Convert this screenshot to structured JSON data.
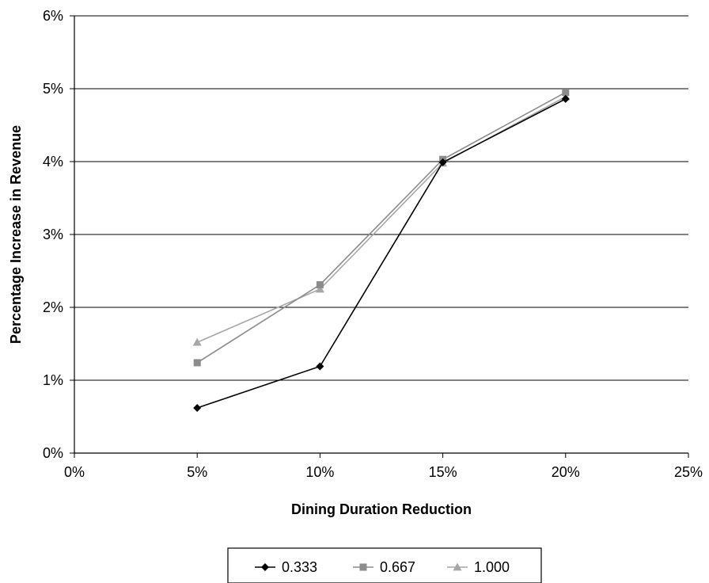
{
  "chart_data": {
    "type": "line",
    "title": "",
    "xlabel": "Dining Duration Reduction",
    "ylabel": "Percentage Increase in Revenue",
    "xlim": [
      0,
      25
    ],
    "ylim": [
      0,
      6
    ],
    "x_ticks": [
      {
        "value": 0,
        "label": "0%"
      },
      {
        "value": 5,
        "label": "5%"
      },
      {
        "value": 10,
        "label": "10%"
      },
      {
        "value": 15,
        "label": "15%"
      },
      {
        "value": 20,
        "label": "20%"
      },
      {
        "value": 25,
        "label": "25%"
      }
    ],
    "y_ticks": [
      {
        "value": 0,
        "label": "0%"
      },
      {
        "value": 1,
        "label": "1%"
      },
      {
        "value": 2,
        "label": "2%"
      },
      {
        "value": 3,
        "label": "3%"
      },
      {
        "value": 4,
        "label": "4%"
      },
      {
        "value": 5,
        "label": "5%"
      },
      {
        "value": 6,
        "label": "6%"
      }
    ],
    "grid": "horizontal",
    "legend_position": "bottom",
    "x": [
      5,
      10,
      15,
      20
    ],
    "series": [
      {
        "name": "0.333",
        "values": [
          0.62,
          1.19,
          3.99,
          4.86
        ],
        "color": "#000000",
        "marker": "diamond"
      },
      {
        "name": "0.667",
        "values": [
          1.24,
          2.31,
          4.03,
          4.95
        ],
        "color": "#8c8c8c",
        "marker": "square"
      },
      {
        "name": "1.000",
        "values": [
          1.52,
          2.25,
          3.98,
          4.89
        ],
        "color": "#a6a6a6",
        "marker": "triangle"
      }
    ]
  }
}
